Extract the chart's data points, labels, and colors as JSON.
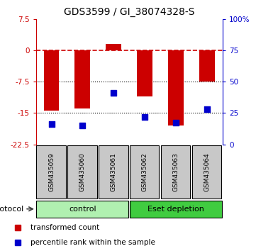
{
  "title": "GDS3599 / GI_38074328-S",
  "samples": [
    "GSM435059",
    "GSM435060",
    "GSM435061",
    "GSM435062",
    "GSM435063",
    "GSM435064"
  ],
  "red_values": [
    -14.5,
    -14.0,
    1.5,
    -11.0,
    -18.0,
    -7.5
  ],
  "blue_percentiles": [
    16,
    15,
    41,
    22,
    17,
    28
  ],
  "ylim_left": [
    -22.5,
    7.5
  ],
  "ylim_right": [
    0,
    100
  ],
  "yticks_left": [
    7.5,
    0,
    -7.5,
    -15,
    -22.5
  ],
  "yticks_right": [
    100,
    75,
    50,
    25,
    0
  ],
  "ytick_labels_right": [
    "100%",
    "75",
    "50",
    "25",
    "0"
  ],
  "groups": [
    {
      "label": "control",
      "indices": [
        0,
        1,
        2
      ],
      "color": "#b0f0b0"
    },
    {
      "label": "Eset depletion",
      "indices": [
        3,
        4,
        5
      ],
      "color": "#40cc40"
    }
  ],
  "bar_color": "#cc0000",
  "dot_color": "#0000cc",
  "bg_color": "#ffffff",
  "plot_bg": "#ffffff",
  "hline_zero_color": "#cc0000",
  "hline_dotted_color": "#000000",
  "protocol_label": "protocol",
  "legend_red": "transformed count",
  "legend_blue": "percentile rank within the sample",
  "bar_width": 0.5,
  "sample_box_color": "#c8c8c8"
}
